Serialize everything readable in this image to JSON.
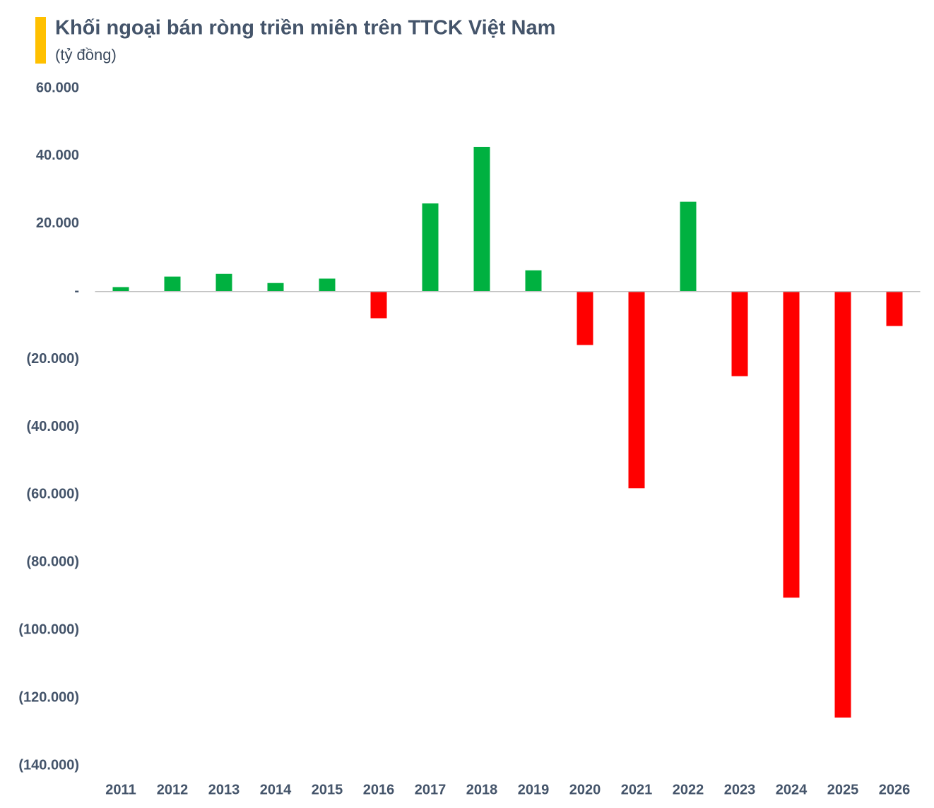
{
  "chart_data": {
    "type": "bar",
    "title": "Khối ngoại bán ròng triền miên trên TTCK Việt Nam",
    "subtitle": "(tỷ đồng)",
    "categories": [
      "2011",
      "2012",
      "2013",
      "2014",
      "2015",
      "2016",
      "2017",
      "2018",
      "2019",
      "2020",
      "2021",
      "2022",
      "2023",
      "2024",
      "2025",
      "2026"
    ],
    "values": [
      1300,
      4400,
      5200,
      2500,
      3800,
      -7900,
      26000,
      42700,
      6250,
      -15800,
      -58100,
      26500,
      -25000,
      -90400,
      -125800,
      -10200
    ],
    "positive_color": "#00b140",
    "negative_color": "#ff0000",
    "ylim": [
      -140000,
      60000
    ],
    "yticks": [
      {
        "value": 60000,
        "label": "60.000"
      },
      {
        "value": 40000,
        "label": "40.000"
      },
      {
        "value": 20000,
        "label": "20.000"
      },
      {
        "value": 0,
        "label": "-"
      },
      {
        "value": -20000,
        "label": "(20.000)"
      },
      {
        "value": -40000,
        "label": "(40.000)"
      },
      {
        "value": -60000,
        "label": "(60.000)"
      },
      {
        "value": -80000,
        "label": "(80.000)"
      },
      {
        "value": -100000,
        "label": "(100.000)"
      },
      {
        "value": -120000,
        "label": "(120.000)"
      },
      {
        "value": -140000,
        "label": "(140.000)"
      }
    ],
    "grid": false
  }
}
